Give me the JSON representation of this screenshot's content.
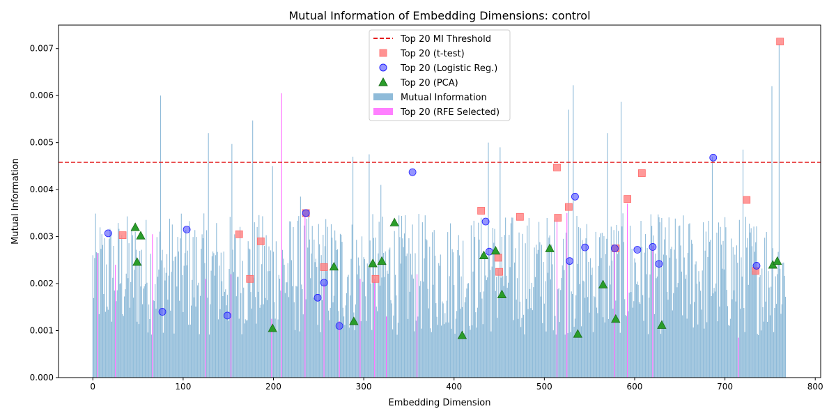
{
  "chart_data": {
    "type": "bar",
    "title": "Mutual Information of Embedding Dimensions: control",
    "xlabel": "Embedding Dimension",
    "ylabel": "Mutual Information",
    "xlim": [
      -38,
      806
    ],
    "ylim": [
      0,
      0.0075
    ],
    "x_ticks": [
      0,
      100,
      200,
      300,
      400,
      500,
      600,
      700,
      800
    ],
    "y_ticks": [
      0.0,
      0.001,
      0.002,
      0.003,
      0.004,
      0.005,
      0.006,
      0.007
    ],
    "y_tick_labels": [
      "0.000",
      "0.001",
      "0.002",
      "0.003",
      "0.004",
      "0.005",
      "0.006",
      "0.007"
    ],
    "n_dimensions": 768,
    "legend_position": "upper-center",
    "threshold": {
      "name": "Top 20 MI Threshold",
      "value": 0.00458,
      "color": "#e41a1c"
    },
    "bar_series": {
      "name": "Mutual Information",
      "color": "#1f77b4"
    },
    "tall_bars": [
      {
        "x": 75,
        "y": 0.006
      },
      {
        "x": 128,
        "y": 0.0052
      },
      {
        "x": 154,
        "y": 0.00497
      },
      {
        "x": 177,
        "y": 0.00547
      },
      {
        "x": 199,
        "y": 0.0045
      },
      {
        "x": 230,
        "y": 0.00385
      },
      {
        "x": 288,
        "y": 0.0047
      },
      {
        "x": 306,
        "y": 0.00475
      },
      {
        "x": 319,
        "y": 0.0041
      },
      {
        "x": 438,
        "y": 0.005
      },
      {
        "x": 451,
        "y": 0.0049
      },
      {
        "x": 527,
        "y": 0.0057
      },
      {
        "x": 532,
        "y": 0.00622
      },
      {
        "x": 570,
        "y": 0.0052
      },
      {
        "x": 585,
        "y": 0.00587
      },
      {
        "x": 686,
        "y": 0.0047
      },
      {
        "x": 720,
        "y": 0.00485
      },
      {
        "x": 752,
        "y": 0.0062
      },
      {
        "x": 760,
        "y": 0.0071
      }
    ],
    "rfe_selected": {
      "name": "Top 20 (RFE Selected)",
      "color": "#ff00ff",
      "bars": [
        {
          "x": 5,
          "y": 0.00265
        },
        {
          "x": 25,
          "y": 0.0024
        },
        {
          "x": 66,
          "y": 0.00305
        },
        {
          "x": 125,
          "y": 0.0021
        },
        {
          "x": 153,
          "y": 0.0022
        },
        {
          "x": 198,
          "y": 0.00125
        },
        {
          "x": 209,
          "y": 0.00605
        },
        {
          "x": 235,
          "y": 0.0035
        },
        {
          "x": 256,
          "y": 0.002
        },
        {
          "x": 273,
          "y": 0.0012
        },
        {
          "x": 296,
          "y": 0.0021
        },
        {
          "x": 312,
          "y": 0.0021
        },
        {
          "x": 325,
          "y": 0.0013
        },
        {
          "x": 359,
          "y": 0.0022
        },
        {
          "x": 514,
          "y": 0.0034
        },
        {
          "x": 525,
          "y": 0.0035
        },
        {
          "x": 578,
          "y": 0.00275
        },
        {
          "x": 592,
          "y": 0.0037
        },
        {
          "x": 620,
          "y": 0.0028
        },
        {
          "x": 715,
          "y": 0.00085
        }
      ]
    },
    "ttest": {
      "name": "Top 20 (t-test)",
      "color": "#ff7f7f",
      "points": [
        {
          "x": 33,
          "y": 0.00303
        },
        {
          "x": 162,
          "y": 0.00305
        },
        {
          "x": 174,
          "y": 0.0021
        },
        {
          "x": 186,
          "y": 0.0029
        },
        {
          "x": 236,
          "y": 0.0035
        },
        {
          "x": 256,
          "y": 0.00235
        },
        {
          "x": 313,
          "y": 0.0021
        },
        {
          "x": 430,
          "y": 0.00355
        },
        {
          "x": 449,
          "y": 0.00255
        },
        {
          "x": 450,
          "y": 0.00225
        },
        {
          "x": 473,
          "y": 0.00342
        },
        {
          "x": 514,
          "y": 0.00447
        },
        {
          "x": 515,
          "y": 0.0034
        },
        {
          "x": 527,
          "y": 0.00363
        },
        {
          "x": 579,
          "y": 0.00275
        },
        {
          "x": 592,
          "y": 0.0038
        },
        {
          "x": 608,
          "y": 0.00435
        },
        {
          "x": 724,
          "y": 0.00378
        },
        {
          "x": 734,
          "y": 0.00227
        },
        {
          "x": 761,
          "y": 0.00715
        }
      ]
    },
    "logistic": {
      "name": "Top 20 (Logistic Reg.)",
      "color": "#4f4fff",
      "points": [
        {
          "x": 17,
          "y": 0.00307
        },
        {
          "x": 77,
          "y": 0.0014
        },
        {
          "x": 104,
          "y": 0.00315
        },
        {
          "x": 149,
          "y": 0.00132
        },
        {
          "x": 236,
          "y": 0.0035
        },
        {
          "x": 249,
          "y": 0.0017
        },
        {
          "x": 256,
          "y": 0.00202
        },
        {
          "x": 273,
          "y": 0.0011
        },
        {
          "x": 354,
          "y": 0.00437
        },
        {
          "x": 435,
          "y": 0.00332
        },
        {
          "x": 439,
          "y": 0.00268
        },
        {
          "x": 528,
          "y": 0.00248
        },
        {
          "x": 534,
          "y": 0.00385
        },
        {
          "x": 545,
          "y": 0.00277
        },
        {
          "x": 578,
          "y": 0.00275
        },
        {
          "x": 603,
          "y": 0.00272
        },
        {
          "x": 620,
          "y": 0.00278
        },
        {
          "x": 627,
          "y": 0.00242
        },
        {
          "x": 687,
          "y": 0.00468
        },
        {
          "x": 735,
          "y": 0.00238
        }
      ]
    },
    "pca": {
      "name": "Top 20 (PCA)",
      "color": "#2a9d2a",
      "points": [
        {
          "x": 47,
          "y": 0.0032
        },
        {
          "x": 49,
          "y": 0.00246
        },
        {
          "x": 53,
          "y": 0.00302
        },
        {
          "x": 199,
          "y": 0.00105
        },
        {
          "x": 267,
          "y": 0.00236
        },
        {
          "x": 289,
          "y": 0.0012
        },
        {
          "x": 310,
          "y": 0.00243
        },
        {
          "x": 320,
          "y": 0.00248
        },
        {
          "x": 334,
          "y": 0.0033
        },
        {
          "x": 409,
          "y": 0.0009
        },
        {
          "x": 433,
          "y": 0.0026
        },
        {
          "x": 446,
          "y": 0.0027
        },
        {
          "x": 453,
          "y": 0.00177
        },
        {
          "x": 506,
          "y": 0.00275
        },
        {
          "x": 537,
          "y": 0.00093
        },
        {
          "x": 565,
          "y": 0.00198
        },
        {
          "x": 579,
          "y": 0.00125
        },
        {
          "x": 630,
          "y": 0.00112
        },
        {
          "x": 753,
          "y": 0.0024
        },
        {
          "x": 758,
          "y": 0.00248
        }
      ]
    }
  }
}
